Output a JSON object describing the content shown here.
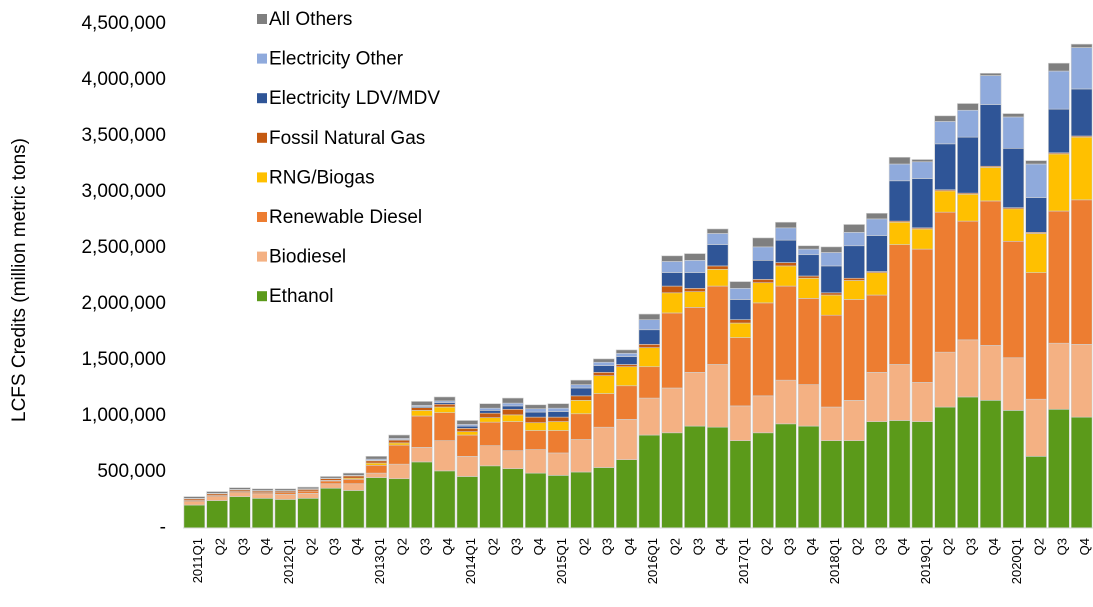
{
  "chart_data": {
    "type": "stacked_bar",
    "y_label": "LCFS Credits (million metric tons)",
    "categories": [
      "2011Q1",
      "Q2",
      "Q3",
      "Q4",
      "2012Q1",
      "Q2",
      "Q3",
      "Q4",
      "2013Q1",
      "Q2",
      "Q3",
      "Q4",
      "2014Q1",
      "Q2",
      "Q3",
      "Q4",
      "2015Q1",
      "Q2",
      "Q3",
      "Q4",
      "2016Q1",
      "Q2",
      "Q3",
      "Q4",
      "2017Q1",
      "Q2",
      "Q3",
      "Q4",
      "2018Q1",
      "Q2",
      "Q3",
      "Q4",
      "2019Q1",
      "Q2",
      "Q3",
      "Q4",
      "2020Q1",
      "Q2",
      "Q3",
      "Q4"
    ],
    "series": [
      {
        "name": "Ethanol",
        "color": "#5b9a1a",
        "values": [
          205000,
          245000,
          280000,
          265000,
          255000,
          265000,
          355000,
          335000,
          450000,
          440000,
          590000,
          510000,
          460000,
          555000,
          530000,
          490000,
          470000,
          500000,
          540000,
          610000,
          830000,
          850000,
          910000,
          900000,
          780000,
          850000,
          930000,
          910000,
          780000,
          780000,
          950000,
          960000,
          950000,
          1080000,
          1170000,
          1140000,
          1050000,
          640000,
          1060000,
          990000
        ]
      },
      {
        "name": "Biodiesel",
        "color": "#f4b183",
        "values": [
          30000,
          35000,
          35000,
          40000,
          45000,
          45000,
          40000,
          60000,
          40000,
          130000,
          130000,
          270000,
          180000,
          180000,
          160000,
          210000,
          200000,
          290000,
          360000,
          360000,
          330000,
          400000,
          480000,
          560000,
          310000,
          330000,
          390000,
          370000,
          300000,
          360000,
          440000,
          500000,
          350000,
          490000,
          510000,
          490000,
          470000,
          510000,
          590000,
          650000
        ]
      },
      {
        "name": "Renewable Diesel",
        "color": "#ed7d31",
        "values": [
          10000,
          10000,
          10000,
          10000,
          15000,
          20000,
          25000,
          40000,
          70000,
          170000,
          280000,
          250000,
          190000,
          210000,
          260000,
          170000,
          200000,
          230000,
          300000,
          300000,
          280000,
          670000,
          580000,
          700000,
          610000,
          830000,
          840000,
          770000,
          820000,
          900000,
          690000,
          1070000,
          1190000,
          1250000,
          1060000,
          1290000,
          1040000,
          1130000,
          1180000,
          1290000
        ]
      },
      {
        "name": "RNG/Biogas",
        "color": "#ffc000",
        "values": [
          0,
          0,
          0,
          0,
          0,
          0,
          5000,
          10000,
          20000,
          20000,
          50000,
          50000,
          30000,
          40000,
          60000,
          70000,
          80000,
          120000,
          160000,
          170000,
          170000,
          180000,
          140000,
          150000,
          130000,
          180000,
          180000,
          180000,
          180000,
          170000,
          200000,
          200000,
          180000,
          190000,
          240000,
          300000,
          290000,
          350000,
          510000,
          560000
        ]
      },
      {
        "name": "Fossil Natural Gas",
        "color": "#c55a11",
        "values": [
          15000,
          15000,
          15000,
          15000,
          15000,
          15000,
          15000,
          20000,
          20000,
          25000,
          25000,
          25000,
          30000,
          40000,
          50000,
          50000,
          40000,
          40000,
          30000,
          20000,
          30000,
          60000,
          30000,
          30000,
          30000,
          30000,
          30000,
          20000,
          20000,
          20000,
          10000,
          10000,
          10000,
          10000,
          10000,
          10000,
          10000,
          10000,
          10000,
          10000
        ]
      },
      {
        "name": "Electricity LDV/MDV",
        "color": "#2f5597",
        "values": [
          0,
          0,
          0,
          0,
          0,
          0,
          0,
          0,
          5000,
          5000,
          10000,
          15000,
          20000,
          25000,
          30000,
          45000,
          50000,
          70000,
          60000,
          70000,
          130000,
          120000,
          140000,
          190000,
          180000,
          170000,
          200000,
          190000,
          240000,
          290000,
          320000,
          360000,
          440000,
          410000,
          500000,
          550000,
          530000,
          310000,
          390000,
          420000
        ]
      },
      {
        "name": "Electricity Other",
        "color": "#8faadc",
        "values": [
          5000,
          5000,
          5000,
          5000,
          5000,
          5000,
          5000,
          5000,
          10000,
          10000,
          10000,
          15000,
          15000,
          20000,
          25000,
          30000,
          30000,
          30000,
          30000,
          30000,
          90000,
          100000,
          110000,
          100000,
          100000,
          120000,
          110000,
          50000,
          120000,
          120000,
          150000,
          150000,
          150000,
          200000,
          240000,
          260000,
          280000,
          300000,
          340000,
          370000
        ]
      },
      {
        "name": "All Others",
        "color": "#7f7f7f",
        "values": [
          15000,
          15000,
          15000,
          15000,
          15000,
          15000,
          15000,
          20000,
          25000,
          30000,
          35000,
          35000,
          35000,
          40000,
          45000,
          35000,
          40000,
          40000,
          30000,
          30000,
          50000,
          50000,
          60000,
          40000,
          60000,
          80000,
          50000,
          30000,
          50000,
          70000,
          50000,
          60000,
          20000,
          50000,
          60000,
          20000,
          30000,
          30000,
          70000,
          30000
        ]
      }
    ],
    "ylim": [
      0,
      4500000
    ],
    "yticks": [
      {
        "value": 0,
        "label": "-"
      },
      {
        "value": 500000,
        "label": "500,000"
      },
      {
        "value": 1000000,
        "label": "1,000,000"
      },
      {
        "value": 1500000,
        "label": "1,500,000"
      },
      {
        "value": 2000000,
        "label": "2,000,000"
      },
      {
        "value": 2500000,
        "label": "2,500,000"
      },
      {
        "value": 3000000,
        "label": "3,000,000"
      },
      {
        "value": 3500000,
        "label": "3,500,000"
      },
      {
        "value": 4000000,
        "label": "4,000,000"
      },
      {
        "value": 4500000,
        "label": "4,500,000"
      }
    ],
    "legend": "upper left"
  }
}
